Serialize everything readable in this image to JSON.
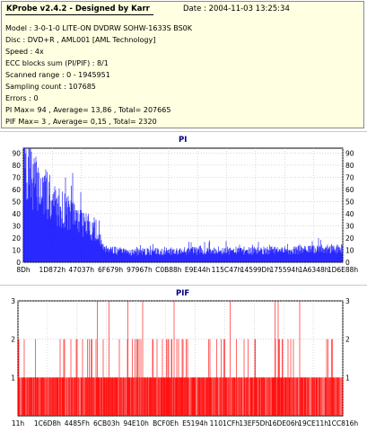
{
  "info": {
    "app_title": "KProbe v2.4.2 - Designed by Karr",
    "date": "Date : 2004-11-03 13:25:34",
    "lines": [
      "Model : 3-0-1-0 LITE-ON DVDRW SOHW-1633S BS0K",
      "Disc : DVD+R , AML001 [AML Technology]",
      "Speed : 4x",
      "ECC blocks sum (PI/PIF) : 8/1",
      "Scanned range : 0 - 1945951",
      "Sampling count : 107685",
      "Errors : 0",
      "PI Max= 94 , Average= 13,86 , Total= 207665",
      "PIF Max= 3 , Average= 0,15 , Total= 2320"
    ]
  },
  "colors": {
    "pi": "#0000ff",
    "pif": "#ff0000",
    "bg": "#ffffe1",
    "title": "#000080"
  },
  "chart_data": [
    {
      "type": "bar",
      "title": "PI",
      "ylim": [
        0,
        94
      ],
      "yticks": [
        0,
        10,
        20,
        30,
        40,
        50,
        60,
        70,
        80,
        90
      ],
      "xtick_labels": [
        "8Dh",
        "1D872h",
        "47037h",
        "6F679h",
        "97967h",
        "C0B88h",
        "E9E44h",
        "115C47h",
        "14599Dh",
        "175594h",
        "1A6348h",
        "1D6E88h"
      ],
      "profile_x": [
        0,
        0.02,
        0.05,
        0.1,
        0.15,
        0.2,
        0.22,
        0.25,
        0.3,
        0.4,
        0.5,
        0.6,
        0.7,
        0.8,
        0.9,
        1.0
      ],
      "profile_y": [
        80,
        75,
        65,
        50,
        42,
        32,
        28,
        14,
        9,
        9,
        10,
        10,
        10,
        10,
        11,
        12
      ],
      "grid": true
    },
    {
      "type": "bar",
      "title": "PIF",
      "ylim": [
        0,
        3
      ],
      "yticks": [
        1,
        2,
        3
      ],
      "xtick_labels": [
        "11h",
        "1C6D8h",
        "4485Fh",
        "6CB03h",
        "94E10h",
        "BCF0Eh",
        "E5194h",
        "1101CFh",
        "13EF5Dh",
        "16DE06h",
        "19CE11h",
        "1CC816h"
      ],
      "max_value": 3,
      "grid": true
    }
  ]
}
